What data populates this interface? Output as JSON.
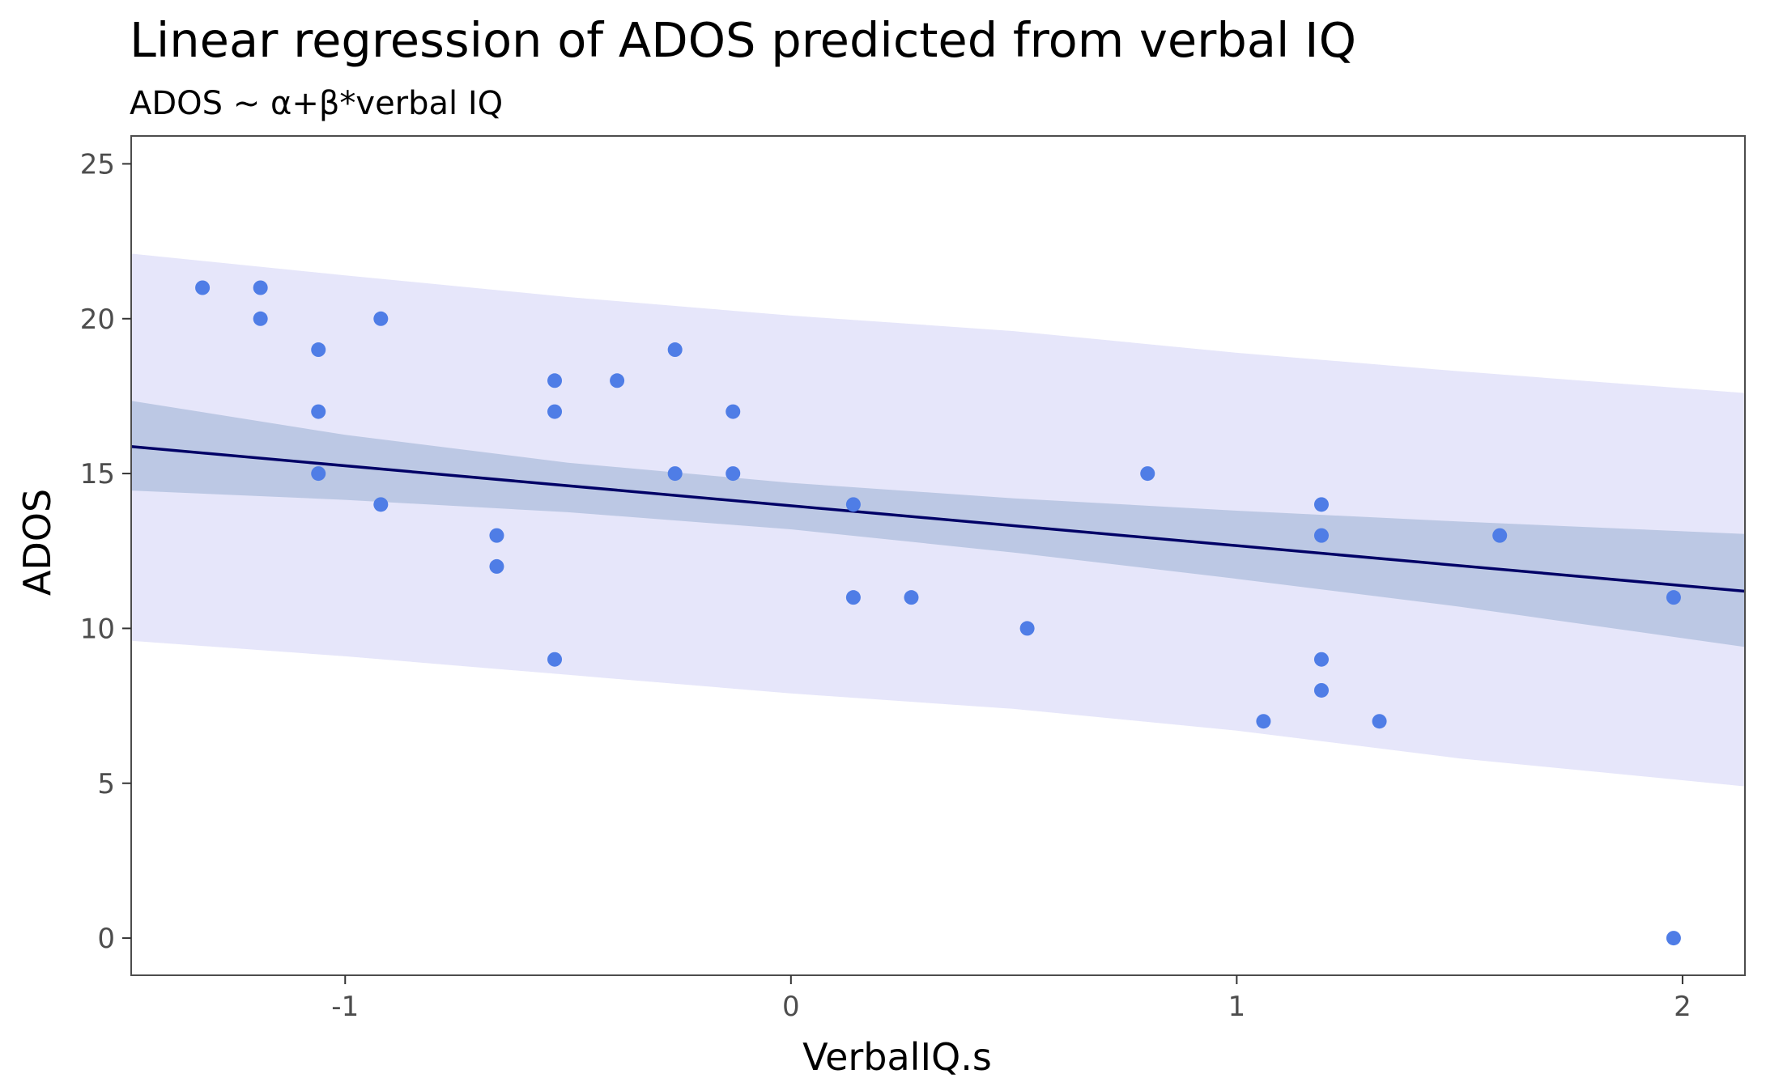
{
  "chart_data": {
    "type": "scatter",
    "title": "Linear regression of ADOS predicted from verbal IQ",
    "subtitle": "ADOS ~ α+β*verbal IQ",
    "xlabel": "VerbalIQ.s",
    "ylabel": "ADOS",
    "xlim": [
      -1.48,
      2.14
    ],
    "ylim": [
      -1.2,
      25.9
    ],
    "x_ticks": [
      -1,
      0,
      1,
      2
    ],
    "y_ticks": [
      0,
      5,
      10,
      15,
      20,
      25
    ],
    "x_tick_labels": [
      "-1",
      "0",
      "1",
      "2"
    ],
    "y_tick_labels": [
      "0",
      "5",
      "10",
      "15",
      "20",
      "25"
    ],
    "grid": false,
    "points": [
      {
        "x": -1.32,
        "y": 21
      },
      {
        "x": -1.19,
        "y": 21
      },
      {
        "x": -1.19,
        "y": 20
      },
      {
        "x": -1.06,
        "y": 19
      },
      {
        "x": -1.06,
        "y": 17
      },
      {
        "x": -1.06,
        "y": 15
      },
      {
        "x": -0.92,
        "y": 20
      },
      {
        "x": -0.92,
        "y": 14
      },
      {
        "x": -0.66,
        "y": 13
      },
      {
        "x": -0.66,
        "y": 12
      },
      {
        "x": -0.53,
        "y": 18
      },
      {
        "x": -0.53,
        "y": 17
      },
      {
        "x": -0.53,
        "y": 9
      },
      {
        "x": -0.39,
        "y": 18
      },
      {
        "x": -0.26,
        "y": 19
      },
      {
        "x": -0.26,
        "y": 15
      },
      {
        "x": -0.13,
        "y": 17
      },
      {
        "x": -0.13,
        "y": 15
      },
      {
        "x": 0.14,
        "y": 14
      },
      {
        "x": 0.14,
        "y": 11
      },
      {
        "x": 0.27,
        "y": 11
      },
      {
        "x": 0.53,
        "y": 10
      },
      {
        "x": 0.8,
        "y": 15
      },
      {
        "x": 1.06,
        "y": 7
      },
      {
        "x": 1.19,
        "y": 14
      },
      {
        "x": 1.19,
        "y": 13
      },
      {
        "x": 1.19,
        "y": 9
      },
      {
        "x": 1.19,
        "y": 8
      },
      {
        "x": 1.32,
        "y": 7
      },
      {
        "x": 1.59,
        "y": 13
      },
      {
        "x": 1.98,
        "y": 11
      },
      {
        "x": 1.98,
        "y": 0
      }
    ],
    "regression_line": {
      "x": [
        -1.48,
        2.14
      ],
      "y": [
        15.87,
        11.2
      ]
    },
    "confidence_band": {
      "x": [
        -1.48,
        -1,
        -0.5,
        0,
        0.5,
        1,
        1.5,
        2.14
      ],
      "lower": [
        14.45,
        14.15,
        13.75,
        13.2,
        12.45,
        11.6,
        10.7,
        9.4
      ],
      "upper": [
        17.35,
        16.25,
        15.35,
        14.7,
        14.2,
        13.8,
        13.45,
        13.05
      ]
    },
    "prediction_band": {
      "x": [
        -1.48,
        -1,
        -0.5,
        0,
        0.5,
        1,
        1.5,
        2.14
      ],
      "lower": [
        9.6,
        9.1,
        8.5,
        7.9,
        7.4,
        6.7,
        5.8,
        4.9
      ],
      "upper": [
        22.1,
        21.4,
        20.7,
        20.1,
        19.6,
        18.9,
        18.3,
        17.6
      ]
    },
    "colors": {
      "points": "#4f7de6",
      "line": "#000066",
      "confidence_band": "#bcc8e4",
      "prediction_band": "#e6e6fa",
      "panel_border": "#4d4d4d",
      "tick_text": "#4d4d4d"
    }
  }
}
